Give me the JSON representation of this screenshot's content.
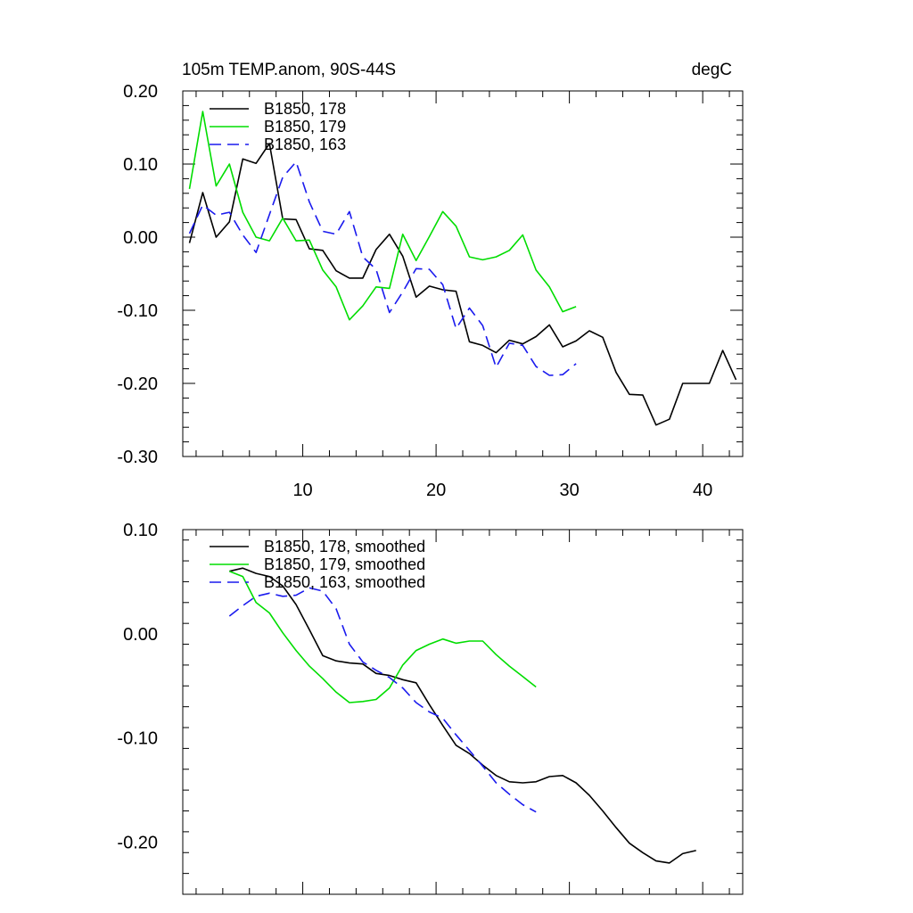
{
  "chart_data": [
    {
      "type": "line",
      "title": "105m TEMP.anom, 90S-44S",
      "units": "degC",
      "xlim": [
        1,
        43
      ],
      "ylim": [
        -0.3,
        0.2
      ],
      "xticks": [
        10,
        20,
        30,
        40
      ],
      "yticks": [
        0.2,
        0.1,
        0.0,
        -0.1,
        -0.2,
        -0.3
      ],
      "ytick_labels": [
        "0.20",
        "0.10",
        "0.00",
        "-0.10",
        "-0.20",
        "-0.30"
      ],
      "legend_position": "top-left",
      "series": [
        {
          "name": "B1850, 178",
          "color": "#000000",
          "dash": "solid",
          "x": [
            1.5,
            2.5,
            3.5,
            4.5,
            5.5,
            6.5,
            7.5,
            8.5,
            9.5,
            10.5,
            11.5,
            12.5,
            13.5,
            14.5,
            15.5,
            16.5,
            17.5,
            18.5,
            19.5,
            20.5,
            21.5,
            22.5,
            23.5,
            24.5,
            25.5,
            26.5,
            27.5,
            28.5,
            29.5,
            30.5,
            31.5,
            32.5,
            33.5,
            34.5,
            35.5,
            36.5,
            37.5,
            38.5,
            39.5,
            40.5,
            41.5,
            42.5
          ],
          "values": [
            -0.008,
            0.061,
            0.0,
            0.021,
            0.107,
            0.101,
            0.128,
            0.025,
            0.024,
            -0.016,
            -0.018,
            -0.046,
            -0.056,
            -0.056,
            -0.017,
            0.004,
            -0.026,
            -0.082,
            -0.067,
            -0.072,
            -0.074,
            -0.143,
            -0.148,
            -0.158,
            -0.141,
            -0.146,
            -0.136,
            -0.12,
            -0.15,
            -0.142,
            -0.128,
            -0.137,
            -0.185,
            -0.215,
            -0.216,
            -0.257,
            -0.249,
            -0.2,
            -0.2,
            -0.2,
            -0.155,
            -0.195
          ]
        },
        {
          "name": "B1850, 179",
          "color": "#00dd00",
          "dash": "solid",
          "x": [
            1.5,
            2.5,
            3.5,
            4.5,
            5.5,
            6.5,
            7.5,
            8.5,
            9.5,
            10.5,
            11.5,
            12.5,
            13.5,
            14.5,
            15.5,
            16.5,
            17.5,
            18.5,
            19.5,
            20.5,
            21.5,
            22.5,
            23.5,
            24.5,
            25.5,
            26.5,
            27.5,
            28.5,
            29.5,
            30.5
          ],
          "values": [
            0.066,
            0.172,
            0.07,
            0.1,
            0.034,
            0.0,
            -0.005,
            0.026,
            -0.005,
            -0.004,
            -0.045,
            -0.068,
            -0.113,
            -0.094,
            -0.068,
            -0.07,
            0.004,
            -0.032,
            0.001,
            0.035,
            0.015,
            -0.027,
            -0.031,
            -0.027,
            -0.018,
            0.003,
            -0.045,
            -0.068,
            -0.102,
            -0.095
          ]
        },
        {
          "name": "B1850, 163",
          "color": "#1a1aee",
          "dash": "dashed",
          "x": [
            1.5,
            2.5,
            3.5,
            4.5,
            5.5,
            6.5,
            7.5,
            8.5,
            9.5,
            10.5,
            11.5,
            12.5,
            13.5,
            14.5,
            15.5,
            16.5,
            17.5,
            18.5,
            19.5,
            20.5,
            21.5,
            22.5,
            23.5,
            24.5,
            25.5,
            26.5,
            27.5,
            28.5,
            29.5,
            30.5
          ],
          "values": [
            0.005,
            0.044,
            0.03,
            0.034,
            0.003,
            -0.021,
            0.031,
            0.082,
            0.103,
            0.048,
            0.008,
            0.004,
            0.035,
            -0.027,
            -0.044,
            -0.103,
            -0.075,
            -0.043,
            -0.044,
            -0.065,
            -0.125,
            -0.097,
            -0.121,
            -0.178,
            -0.145,
            -0.148,
            -0.177,
            -0.189,
            -0.188,
            -0.173
          ]
        }
      ]
    },
    {
      "type": "line",
      "title": "",
      "xlim": [
        1,
        43
      ],
      "ylim": [
        -0.25,
        0.1
      ],
      "xticks": [
        10,
        20,
        30,
        40
      ],
      "yticks": [
        0.1,
        0.0,
        -0.1,
        -0.2
      ],
      "ytick_labels": [
        "0.10",
        "0.00",
        "-0.10",
        "-0.20"
      ],
      "legend_position": "top-left",
      "series": [
        {
          "name": "B1850, 178, smoothed",
          "color": "#000000",
          "dash": "solid",
          "x": [
            4.5,
            5.5,
            6.5,
            7.5,
            8.5,
            9.5,
            10.5,
            11.5,
            12.5,
            13.5,
            14.5,
            15.5,
            16.5,
            17.5,
            18.5,
            19.5,
            20.5,
            21.5,
            22.5,
            23.5,
            24.5,
            25.5,
            26.5,
            27.5,
            28.5,
            29.5,
            30.5,
            31.5,
            32.5,
            33.5,
            34.5,
            35.5,
            36.5,
            37.5,
            38.5,
            39.5
          ],
          "values": [
            0.06,
            0.063,
            0.058,
            0.055,
            0.046,
            0.028,
            0.004,
            -0.021,
            -0.026,
            -0.028,
            -0.029,
            -0.038,
            -0.04,
            -0.044,
            -0.047,
            -0.068,
            -0.088,
            -0.107,
            -0.115,
            -0.126,
            -0.136,
            -0.142,
            -0.143,
            -0.142,
            -0.137,
            -0.136,
            -0.143,
            -0.155,
            -0.17,
            -0.186,
            -0.201,
            -0.21,
            -0.218,
            -0.22,
            -0.211,
            -0.208
          ]
        },
        {
          "name": "B1850, 179, smoothed",
          "color": "#00dd00",
          "dash": "solid",
          "x": [
            4.5,
            5.5,
            6.5,
            7.5,
            8.5,
            9.5,
            10.5,
            11.5,
            12.5,
            13.5,
            14.5,
            15.5,
            16.5,
            17.5,
            18.5,
            19.5,
            20.5,
            21.5,
            22.5,
            23.5,
            24.5,
            25.5,
            26.5,
            27.5
          ],
          "values": [
            0.06,
            0.055,
            0.03,
            0.02,
            0.001,
            -0.016,
            -0.031,
            -0.043,
            -0.056,
            -0.066,
            -0.065,
            -0.063,
            -0.052,
            -0.03,
            -0.016,
            -0.01,
            -0.005,
            -0.009,
            -0.007,
            -0.007,
            -0.02,
            -0.031,
            -0.041,
            -0.051
          ]
        },
        {
          "name": "B1850, 163, smoothed",
          "color": "#1a1aee",
          "dash": "dashed",
          "x": [
            4.5,
            5.5,
            6.5,
            7.5,
            8.5,
            9.5,
            10.5,
            11.5,
            12.5,
            13.5,
            14.5,
            15.5,
            16.5,
            17.5,
            18.5,
            19.5,
            20.5,
            21.5,
            22.5,
            23.5,
            24.5,
            25.5,
            26.5,
            27.5
          ],
          "values": [
            0.017,
            0.027,
            0.036,
            0.039,
            0.036,
            0.037,
            0.044,
            0.041,
            0.024,
            -0.01,
            -0.027,
            -0.035,
            -0.042,
            -0.052,
            -0.066,
            -0.075,
            -0.081,
            -0.097,
            -0.112,
            -0.127,
            -0.143,
            -0.154,
            -0.164,
            -0.171
          ]
        }
      ]
    }
  ]
}
